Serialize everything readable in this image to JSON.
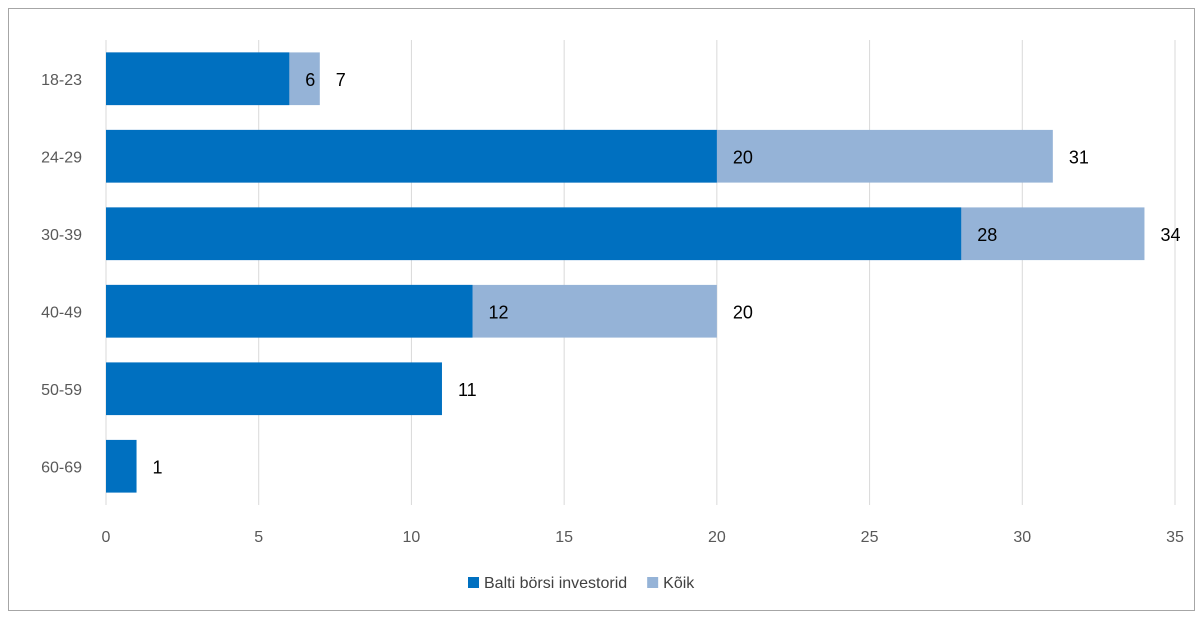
{
  "chart_data": {
    "type": "bar",
    "orientation": "horizontal",
    "categories": [
      "18-23",
      "24-29",
      "30-39",
      "40-49",
      "50-59",
      "60-69"
    ],
    "series": [
      {
        "name": "Balti börsi investorid",
        "values": [
          6,
          20,
          28,
          12,
          11,
          1
        ],
        "color": "#0070c0"
      },
      {
        "name": "Kõik",
        "values": [
          7,
          31,
          34,
          20,
          null,
          null
        ],
        "color": "#95b3d7"
      }
    ],
    "x_ticks": [
      0,
      5,
      10,
      15,
      20,
      25,
      30,
      35
    ],
    "xlim": [
      0,
      35
    ],
    "grid": true,
    "legend_position": "bottom"
  }
}
